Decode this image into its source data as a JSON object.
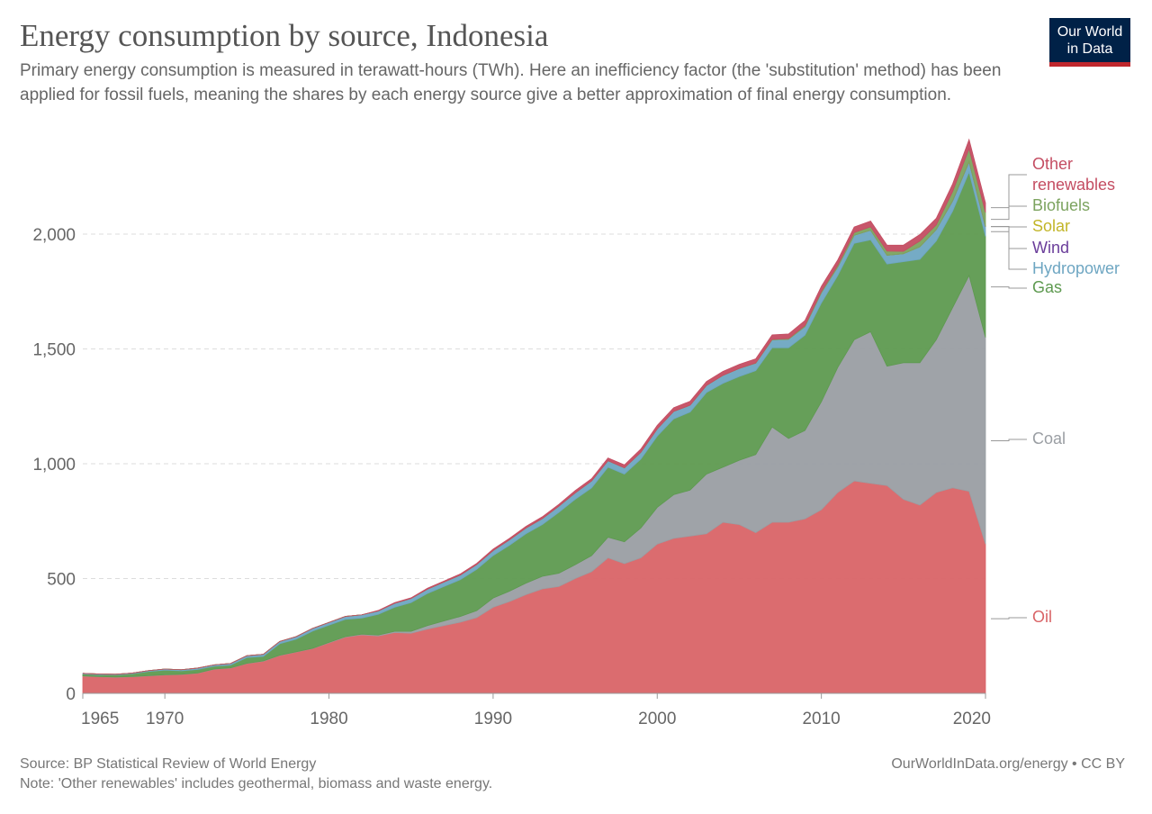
{
  "chart_data": {
    "type": "stacked-area",
    "title": "Energy consumption by source, Indonesia",
    "subtitle": "Primary energy consumption is measured in terawatt-hours (TWh). Here an inefficiency factor (the 'substitution' method) has been applied for fossil fuels, meaning the shares by each energy source give a better approximation of final energy consumption.",
    "source": "Source: BP Statistical Review of World Energy",
    "note": "Note: 'Other renewables' includes geothermal, biomass and waste energy.",
    "credit": "OurWorldInData.org/energy • CC BY",
    "logo": "Our World in Data",
    "x": [
      1965,
      1966,
      1967,
      1968,
      1969,
      1970,
      1971,
      1972,
      1973,
      1974,
      1975,
      1976,
      1977,
      1978,
      1979,
      1980,
      1981,
      1982,
      1983,
      1984,
      1985,
      1986,
      1987,
      1988,
      1989,
      1990,
      1991,
      1992,
      1993,
      1994,
      1995,
      1996,
      1997,
      1998,
      1999,
      2000,
      2001,
      2002,
      2003,
      2004,
      2005,
      2006,
      2007,
      2008,
      2009,
      2010,
      2011,
      2012,
      2013,
      2014,
      2015,
      2016,
      2017,
      2018,
      2019,
      2020
    ],
    "xlim": [
      1965,
      2020
    ],
    "xticks": [
      1965,
      1970,
      1980,
      1990,
      2000,
      2010,
      2020
    ],
    "ylim": [
      0,
      2400
    ],
    "yticks": [
      0,
      500,
      {
        "value": 1000,
        "label": "1,000"
      },
      {
        "value": 1500,
        "label": "1,500"
      },
      {
        "value": 2000,
        "label": "2,000"
      }
    ],
    "grid": true,
    "series": [
      {
        "name": "Oil",
        "color": "#d96467",
        "values": [
          75,
          72,
          70,
          72,
          76,
          80,
          82,
          88,
          105,
          110,
          130,
          140,
          165,
          180,
          195,
          220,
          245,
          255,
          250,
          265,
          262,
          280,
          295,
          310,
          330,
          375,
          400,
          430,
          455,
          465,
          500,
          530,
          590,
          565,
          590,
          650,
          675,
          685,
          695,
          745,
          735,
          700,
          745,
          745,
          760,
          800,
          875,
          925,
          915,
          905,
          845,
          820,
          875,
          895,
          880,
          650
        ]
      },
      {
        "name": "Coal",
        "color": "#9a9ea3",
        "values": [
          1,
          1,
          1,
          1,
          1,
          1,
          1,
          1,
          1,
          1,
          1,
          1,
          1,
          1,
          1,
          2,
          2,
          3,
          4,
          5,
          8,
          15,
          20,
          25,
          30,
          40,
          45,
          50,
          55,
          58,
          60,
          70,
          90,
          95,
          130,
          160,
          190,
          200,
          260,
          240,
          280,
          340,
          415,
          365,
          385,
          470,
          545,
          615,
          660,
          520,
          595,
          620,
          665,
          785,
          940,
          900
        ]
      },
      {
        "name": "Gas",
        "color": "#5e9a50",
        "values": [
          8,
          8,
          9,
          12,
          18,
          20,
          15,
          15,
          12,
          12,
          25,
          20,
          50,
          55,
          75,
          75,
          75,
          70,
          90,
          105,
          125,
          140,
          150,
          160,
          180,
          185,
          200,
          215,
          225,
          265,
          285,
          295,
          305,
          295,
          300,
          310,
          330,
          340,
          355,
          365,
          365,
          365,
          345,
          395,
          415,
          430,
          400,
          420,
          400,
          445,
          440,
          450,
          430,
          420,
          450,
          440
        ]
      },
      {
        "name": "Hydropower",
        "color": "#6ea6c2",
        "values": [
          3,
          3,
          3,
          3,
          4,
          5,
          5,
          6,
          6,
          7,
          8,
          9,
          10,
          11,
          12,
          12,
          13,
          14,
          15,
          17,
          18,
          19,
          20,
          20,
          21,
          22,
          24,
          25,
          26,
          27,
          28,
          30,
          28,
          27,
          30,
          32,
          33,
          30,
          31,
          35,
          35,
          33,
          35,
          37,
          37,
          45,
          37,
          35,
          42,
          38,
          35,
          55,
          50,
          45,
          45,
          42
        ]
      },
      {
        "name": "Wind",
        "color": "#6a3d9a",
        "values": [
          0,
          0,
          0,
          0,
          0,
          0,
          0,
          0,
          0,
          0,
          0,
          0,
          0,
          0,
          0,
          0,
          0,
          0,
          0,
          0,
          0,
          0,
          0,
          0,
          0,
          0,
          0,
          0,
          0,
          0,
          0,
          0,
          0,
          0,
          0,
          0,
          0,
          0,
          0,
          0,
          0,
          0,
          0,
          0,
          0,
          0,
          0,
          0,
          0,
          0,
          0,
          0,
          0,
          1,
          1,
          1
        ]
      },
      {
        "name": "Solar",
        "color": "#c2b528",
        "values": [
          0,
          0,
          0,
          0,
          0,
          0,
          0,
          0,
          0,
          0,
          0,
          0,
          0,
          0,
          0,
          0,
          0,
          0,
          0,
          0,
          0,
          0,
          0,
          0,
          0,
          0,
          0,
          0,
          0,
          0,
          0,
          0,
          0,
          0,
          0,
          0,
          0,
          0,
          0,
          0,
          0,
          0,
          0,
          0,
          0,
          0,
          0,
          0,
          0,
          0,
          0,
          0,
          0,
          0,
          1,
          1
        ]
      },
      {
        "name": "Biofuels",
        "color": "#7ca35f",
        "values": [
          0,
          0,
          0,
          0,
          0,
          0,
          0,
          0,
          0,
          0,
          0,
          0,
          0,
          0,
          0,
          0,
          0,
          0,
          0,
          0,
          0,
          0,
          0,
          0,
          0,
          0,
          0,
          0,
          0,
          0,
          0,
          0,
          0,
          0,
          0,
          0,
          0,
          0,
          0,
          0,
          0,
          1,
          2,
          3,
          5,
          5,
          8,
          12,
          15,
          18,
          10,
          25,
          20,
          40,
          55,
          60
        ]
      },
      {
        "name": "Other renewables",
        "color": "#c44d62",
        "values": [
          0,
          0,
          0,
          0,
          0,
          0,
          0,
          0,
          0,
          0,
          0,
          0,
          0,
          0,
          0,
          0,
          0,
          0,
          2,
          3,
          3,
          4,
          4,
          5,
          5,
          6,
          6,
          7,
          8,
          8,
          10,
          10,
          12,
          13,
          14,
          15,
          16,
          17,
          17,
          17,
          18,
          18,
          19,
          20,
          22,
          23,
          23,
          24,
          25,
          26,
          27,
          28,
          29,
          33,
          40,
          42
        ]
      }
    ]
  }
}
